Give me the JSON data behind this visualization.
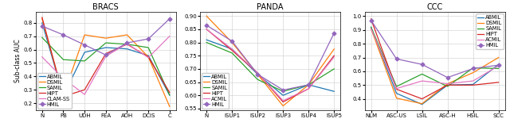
{
  "bracs": {
    "title": "BRACS",
    "xlabel_categories": [
      "N",
      "PB",
      "UDH",
      "FEA",
      "ADH",
      "DCIS",
      "C"
    ],
    "ylim": [
      0.15,
      0.88
    ],
    "yticks": [
      0.2,
      0.3,
      0.4,
      0.5,
      0.6,
      0.7,
      0.8
    ],
    "series": {
      "ABMIL": [
        0.8,
        0.255,
        0.58,
        0.615,
        0.605,
        0.555,
        0.26
      ],
      "DSMIL": [
        0.83,
        0.255,
        0.71,
        0.685,
        0.71,
        0.545,
        0.175
      ],
      "SAMIL": [
        0.69,
        0.525,
        0.515,
        0.65,
        0.64,
        0.615,
        0.26
      ],
      "HIPT": [
        0.84,
        0.25,
        0.3,
        0.57,
        0.64,
        0.545,
        0.28
      ],
      "CLAM-SS": [
        0.545,
        0.385,
        0.265,
        0.55,
        0.645,
        0.54,
        0.7
      ],
      "HMIL": [
        0.775,
        0.71,
        0.635,
        0.56,
        0.65,
        0.68,
        0.83
      ]
    },
    "legend_loc": "lower left",
    "legend_bbox": null
  },
  "panda": {
    "title": "PANDA",
    "xlabel_categories": [
      "N",
      "ISUP1",
      "ISUP2",
      "ISUP3",
      "ISUP4",
      "ISUP5"
    ],
    "ylim": [
      0.545,
      0.915
    ],
    "yticks": [
      0.55,
      0.6,
      0.65,
      0.7,
      0.75,
      0.8,
      0.85,
      0.9
    ],
    "series": {
      "ABMIL": [
        0.81,
        0.775,
        0.68,
        0.6,
        0.64,
        0.615
      ],
      "DSMIL": [
        0.9,
        0.8,
        0.68,
        0.56,
        0.64,
        0.775
      ],
      "SAMIL": [
        0.8,
        0.76,
        0.66,
        0.615,
        0.64,
        0.7
      ],
      "HIPT": [
        0.85,
        0.77,
        0.685,
        0.575,
        0.625,
        0.75
      ],
      "ACMIL": [
        0.85,
        0.775,
        0.685,
        0.58,
        0.625,
        0.745
      ],
      "HMIL": [
        0.865,
        0.805,
        0.68,
        0.62,
        0.64,
        0.835
      ]
    },
    "legend_loc": "lower left",
    "legend_bbox": null
  },
  "ccc": {
    "title": "CCC",
    "xlabel_categories": [
      "NLM",
      "ASC-US",
      "LSIL",
      "ASC-H",
      "HSIL",
      "SCC"
    ],
    "ylim": [
      0.32,
      1.03
    ],
    "yticks": [
      0.4,
      0.5,
      0.6,
      0.7,
      0.8,
      0.9,
      1.0
    ],
    "series": {
      "ABMIL": [
        0.92,
        0.44,
        0.36,
        0.5,
        0.505,
        0.65
      ],
      "DSMIL": [
        0.91,
        0.405,
        0.365,
        0.51,
        0.59,
        0.7
      ],
      "SAMIL": [
        0.92,
        0.49,
        0.58,
        0.49,
        0.625,
        0.62
      ],
      "HIPT": [
        0.98,
        0.47,
        0.4,
        0.5,
        0.5,
        0.52
      ],
      "ACMIL": [
        0.91,
        0.475,
        0.53,
        0.51,
        0.53,
        0.64
      ],
      "HMIL": [
        0.97,
        0.69,
        0.65,
        0.555,
        0.62,
        0.645
      ]
    },
    "legend_loc": "upper right",
    "legend_bbox": null
  },
  "series_styles": {
    "ABMIL": {
      "color": "#1f77b4",
      "linestyle": "-",
      "marker": null,
      "linewidth": 0.9
    },
    "DSMIL": {
      "color": "#ff7f0e",
      "linestyle": "-",
      "marker": null,
      "linewidth": 0.9
    },
    "SAMIL": {
      "color": "#2ca02c",
      "linestyle": "-",
      "marker": null,
      "linewidth": 0.9
    },
    "HIPT": {
      "color": "#d62728",
      "linestyle": "-",
      "marker": null,
      "linewidth": 0.9
    },
    "CLAM-SS": {
      "color": "#e377c2",
      "linestyle": "-",
      "marker": null,
      "linewidth": 0.9
    },
    "ACMIL": {
      "color": "#e377c2",
      "linestyle": "-",
      "marker": null,
      "linewidth": 0.9
    },
    "HMIL": {
      "color": "#9467bd",
      "linestyle": "-",
      "marker": "D",
      "linewidth": 0.9,
      "markersize": 2.5
    }
  },
  "ylabel": "Sub-class AUC",
  "legend_fontsize": 4.8,
  "tick_fontsize": 5.0,
  "title_fontsize": 7.0,
  "label_fontsize": 5.5
}
